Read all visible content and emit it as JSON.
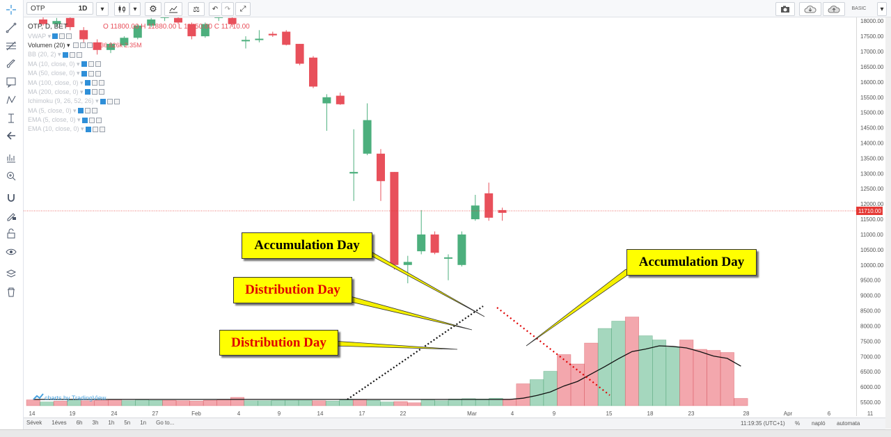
{
  "toolbar": {
    "symbol": "OTP",
    "interval": "1D",
    "basic_label": "BASIC"
  },
  "legend": {
    "main_prefix": "OTP, D, BET",
    "ohlc": "O 11800.00  H 11880.00  L 11450.00  C 11710.00",
    "vwap": "VWAP",
    "volume": "Volumen (20)",
    "volume_values": "436.826k  2.35M",
    "indicators": [
      "BB (20, 2)",
      "MA (10, close, 0)",
      "MA (50, close, 0)",
      "MA (100, close, 0)",
      "MA (200, close, 0)",
      "Ichimoku (9, 26, 52, 26)",
      "MA (5, close, 0)",
      "EMA (5, close, 0)",
      "EMA (10, close, 0)"
    ]
  },
  "watermark": "charts by TradingView",
  "price_axis_labels": [
    "18000.00",
    "17500.00",
    "17000.00",
    "16500.00",
    "16000.00",
    "15500.00",
    "15000.00",
    "14500.00",
    "14000.00",
    "13500.00",
    "13000.00",
    "12500.00",
    "12000.00",
    "11500.00",
    "11000.00",
    "10500.00",
    "10000.00",
    "9500.00",
    "9000.00",
    "8500.00",
    "8000.00",
    "7500.00",
    "7000.00",
    "6500.00",
    "6000.00",
    "5500.00"
  ],
  "current_price_label": "11710.00",
  "time_axis_labels": [
    "14",
    "19",
    "24",
    "27",
    "Feb",
    "4",
    "9",
    "14",
    "17",
    "22",
    "Mar",
    "4",
    "9",
    "15",
    "18",
    "23",
    "28",
    "Apr",
    "6",
    "11"
  ],
  "range_buttons": [
    "Sévek",
    "1éves",
    "6h",
    "3h",
    "1h",
    "5n",
    "1n",
    "Go to..."
  ],
  "status_bar": {
    "clock": "11:19:35 (UTC+1)",
    "percent": "%",
    "log": "napló",
    "auto": "automata"
  },
  "annotations": [
    {
      "kind": "accumulation",
      "text": "Accumulation Day"
    },
    {
      "kind": "distribution",
      "text": "Distribution Day"
    },
    {
      "kind": "distribution",
      "text": "Distribution Day"
    },
    {
      "kind": "accumulation",
      "text": "Accumulation Day"
    }
  ],
  "colors": {
    "up": "#4caf7d",
    "down": "#e8505b",
    "callout_bg": "#ffff00",
    "distribution_text": "#e00000",
    "price_line": "#e53935"
  },
  "chart_data": {
    "type": "candlestick",
    "y_axis_range": [
      5400,
      18100
    ],
    "x_axis_labels_order": [
      "14",
      "19",
      "24",
      "27",
      "Feb",
      "4",
      "9",
      "14",
      "17",
      "22",
      "Mar",
      "4",
      "9",
      "15",
      "18",
      "23",
      "28",
      "Apr",
      "6",
      "11"
    ],
    "candles": [
      {
        "o": 18050,
        "c": 17900,
        "h": 18150,
        "l": 17850
      },
      {
        "o": 17900,
        "c": 18000,
        "h": 18100,
        "l": 17800
      },
      {
        "o": 18100,
        "c": 17800,
        "h": 18150,
        "l": 17700
      },
      {
        "o": 17700,
        "c": 17400,
        "h": 17800,
        "l": 17300
      },
      {
        "o": 17300,
        "c": 17050,
        "h": 17400,
        "l": 16900
      },
      {
        "o": 17050,
        "c": 17250,
        "h": 17300,
        "l": 16950
      },
      {
        "o": 17200,
        "c": 17450,
        "h": 17500,
        "l": 17150
      },
      {
        "o": 17450,
        "c": 17850,
        "h": 17900,
        "l": 17400
      },
      {
        "o": 17850,
        "c": 18050,
        "h": 18100,
        "l": 17800
      },
      {
        "o": 18100,
        "c": 18200,
        "h": 18250,
        "l": 18000
      },
      {
        "o": 18100,
        "c": 17950,
        "h": 18150,
        "l": 17900
      },
      {
        "o": 17900,
        "c": 17500,
        "h": 17950,
        "l": 17400
      },
      {
        "o": 17500,
        "c": 17900,
        "h": 17950,
        "l": 17450
      },
      {
        "o": 18100,
        "c": 18250,
        "h": 18300,
        "l": 18000
      },
      {
        "o": 18100,
        "c": 17900,
        "h": 18150,
        "l": 17800
      },
      {
        "o": 17350,
        "c": 17380,
        "h": 17500,
        "l": 17100
      },
      {
        "o": 17380,
        "c": 17420,
        "h": 17700,
        "l": 17300
      },
      {
        "o": 17580,
        "c": 17530,
        "h": 17650,
        "l": 17480
      },
      {
        "o": 17650,
        "c": 17220,
        "h": 17700,
        "l": 17200
      },
      {
        "o": 17250,
        "c": 16600,
        "h": 17250,
        "l": 16550
      },
      {
        "o": 16800,
        "c": 15850,
        "h": 16850,
        "l": 15800
      },
      {
        "o": 15300,
        "c": 15500,
        "h": 15600,
        "l": 14400
      },
      {
        "o": 15550,
        "c": 15270,
        "h": 15650,
        "l": 15250
      },
      {
        "o": 13000,
        "c": 13050,
        "h": 14450,
        "l": 12100
      },
      {
        "o": 13650,
        "c": 14750,
        "h": 15300,
        "l": 13600
      },
      {
        "o": 13650,
        "c": 12750,
        "h": 13800,
        "l": 12100
      },
      {
        "o": 13050,
        "c": 10000,
        "h": 13050,
        "l": 9850
      },
      {
        "o": 10000,
        "c": 10100,
        "h": 10300,
        "l": 9400
      },
      {
        "o": 10450,
        "c": 11000,
        "h": 11800,
        "l": 10350
      },
      {
        "o": 11000,
        "c": 10400,
        "h": 11100,
        "l": 10350
      },
      {
        "o": 10250,
        "c": 10250,
        "h": 10350,
        "l": 9500
      },
      {
        "o": 10000,
        "c": 11000,
        "h": 11100,
        "l": 9950
      },
      {
        "o": 11500,
        "c": 11950,
        "h": 12300,
        "l": 11450
      },
      {
        "o": 12350,
        "c": 11550,
        "h": 12700,
        "l": 11450
      },
      {
        "o": 11800,
        "c": 11710,
        "h": 11880,
        "l": 11450
      }
    ],
    "volume_bars_relative": [
      0.28,
      0.18,
      0.22,
      0.3,
      0.24,
      0.26,
      0.3,
      0.24,
      0.3,
      0.26,
      0.26,
      0.24,
      0.22,
      0.26,
      0.28,
      0.4,
      0.24,
      0.24,
      0.26,
      0.26,
      0.26,
      0.24,
      0.22,
      0.28,
      0.3,
      0.26,
      0.18,
      0.2,
      0.14,
      0.3,
      0.24,
      0.32,
      0.34,
      0.32,
      0.36,
      0.32,
      1.05,
      1.25,
      1.65,
      2.45,
      2.0,
      3.0,
      3.7,
      4.05,
      4.25,
      3.35,
      3.15,
      2.8,
      3.15,
      2.7,
      2.65,
      2.55,
      0.35
    ],
    "volume_bar_colors": [
      "d",
      "u",
      "d",
      "u",
      "d",
      "d",
      "d",
      "u",
      "u",
      "u",
      "d",
      "d",
      "d",
      "d",
      "d",
      "d",
      "u",
      "u",
      "u",
      "u",
      "u",
      "d",
      "u",
      "u",
      "d",
      "u",
      "u",
      "d",
      "d",
      "u",
      "u",
      "u",
      "u",
      "u",
      "u",
      "d",
      "d",
      "u",
      "u",
      "d",
      "d",
      "d",
      "u",
      "u",
      "d",
      "u",
      "u",
      "u",
      "d",
      "d",
      "d",
      "d",
      "d"
    ]
  }
}
